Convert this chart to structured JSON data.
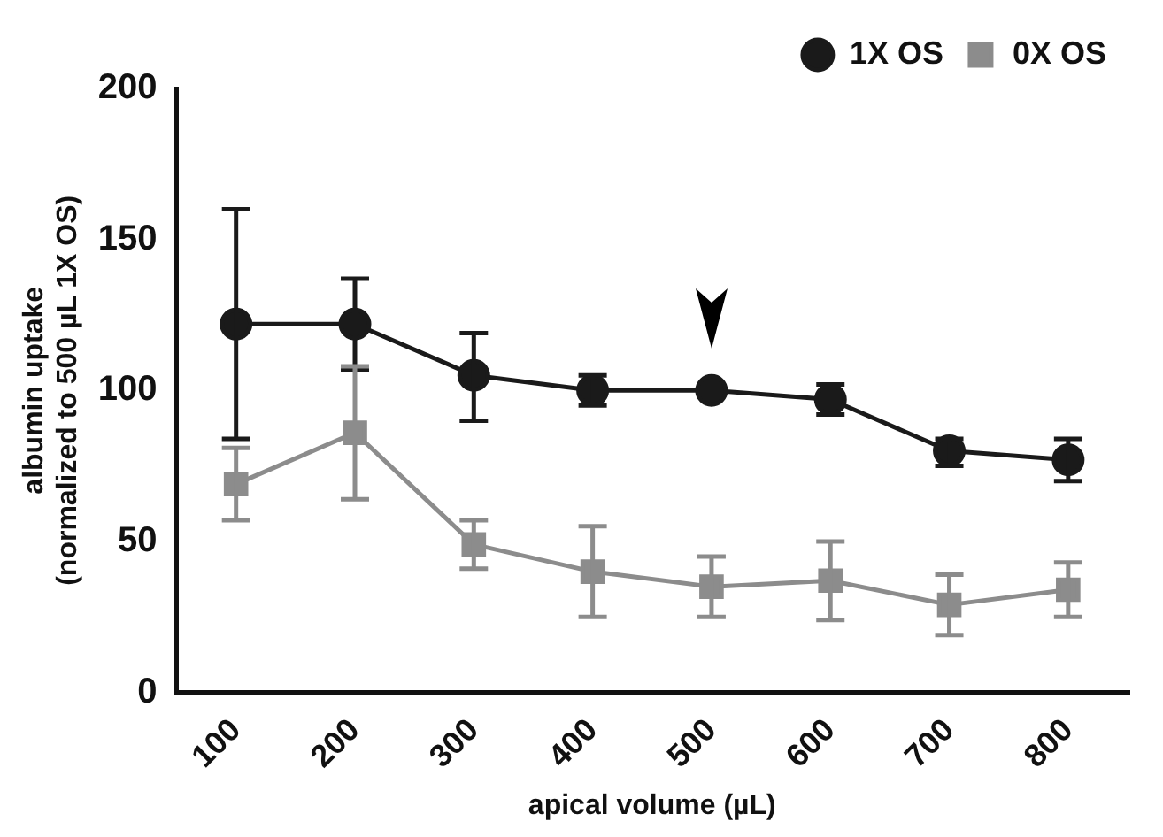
{
  "chart_data": {
    "type": "line",
    "xlabel": "apical volume (µL)",
    "ylabel": "albumin uptake\n(normalized to 500 µL 1X OS)",
    "categories": [
      "100",
      "200",
      "300",
      "400",
      "500",
      "600",
      "700",
      "800"
    ],
    "series": [
      {
        "name": "1X OS",
        "color": "#1a1a1a",
        "marker": "circle",
        "values": [
          122,
          122,
          105,
          100,
          100,
          97,
          80,
          77
        ],
        "errors": [
          [
            84,
            160
          ],
          [
            107,
            137
          ],
          [
            90,
            119
          ],
          [
            95,
            105
          ],
          null,
          [
            92,
            102
          ],
          [
            75,
            84
          ],
          [
            70,
            84
          ]
        ]
      },
      {
        "name": "0X OS",
        "color": "#8c8c8c",
        "marker": "square",
        "values": [
          69,
          86,
          49,
          40,
          35,
          37,
          29,
          34
        ],
        "errors": [
          [
            57,
            81
          ],
          [
            64,
            108
          ],
          [
            41,
            57
          ],
          [
            25,
            55
          ],
          [
            25,
            45
          ],
          [
            24,
            50
          ],
          [
            19,
            39
          ],
          [
            25,
            43
          ]
        ]
      }
    ],
    "ylim": [
      0,
      200
    ],
    "yticks": [
      0,
      50,
      100,
      150,
      200
    ],
    "grid": false,
    "legend": "top right",
    "line_style": "solid"
  }
}
